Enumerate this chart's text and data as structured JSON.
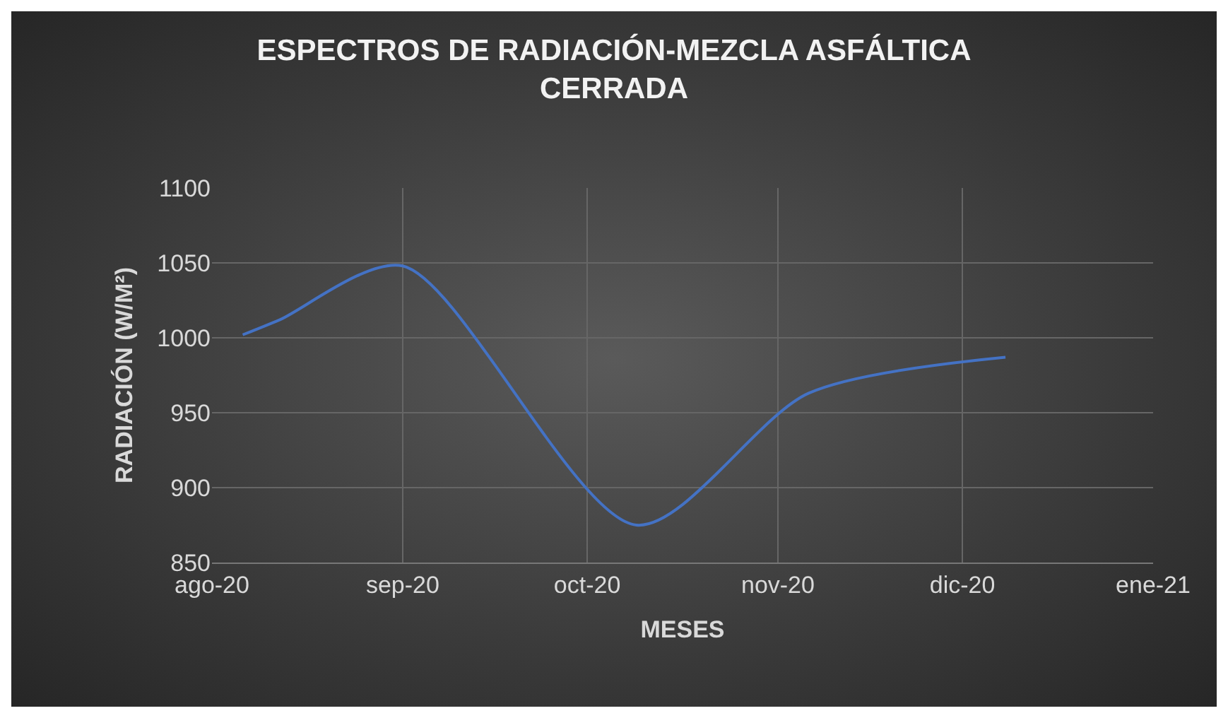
{
  "chart_data": {
    "type": "line",
    "title": "ESPECTROS DE RADIACIÓN-MEZCLA ASFÁLTICA CERRADA",
    "xlabel": "MESES",
    "ylabel": "RADIACIÓN (W/M²)",
    "x": [
      "2020-08-06",
      "2020-08-12",
      "2020-09-01",
      "2020-10-09",
      "2020-11-06",
      "2020-12-08"
    ],
    "series": [
      {
        "color": "#4472c4",
        "values": [
          1002,
          1012,
          1048,
          875,
          963,
          987
        ]
      }
    ],
    "xlim": [
      "2020-08-01",
      "2021-01-01"
    ],
    "xticks": [
      {
        "value": "2020-08-01",
        "label": "ago-20"
      },
      {
        "value": "2020-09-01",
        "label": "sep-20"
      },
      {
        "value": "2020-10-01",
        "label": "oct-20"
      },
      {
        "value": "2020-11-01",
        "label": "nov-20"
      },
      {
        "value": "2020-12-01",
        "label": "dic-20"
      },
      {
        "value": "2021-01-01",
        "label": "ene-21"
      }
    ],
    "ylim": [
      850,
      1100
    ],
    "yticks": [
      850,
      900,
      950,
      1000,
      1050,
      1100
    ],
    "grid": true,
    "marker": "none",
    "line_style": "solid"
  }
}
